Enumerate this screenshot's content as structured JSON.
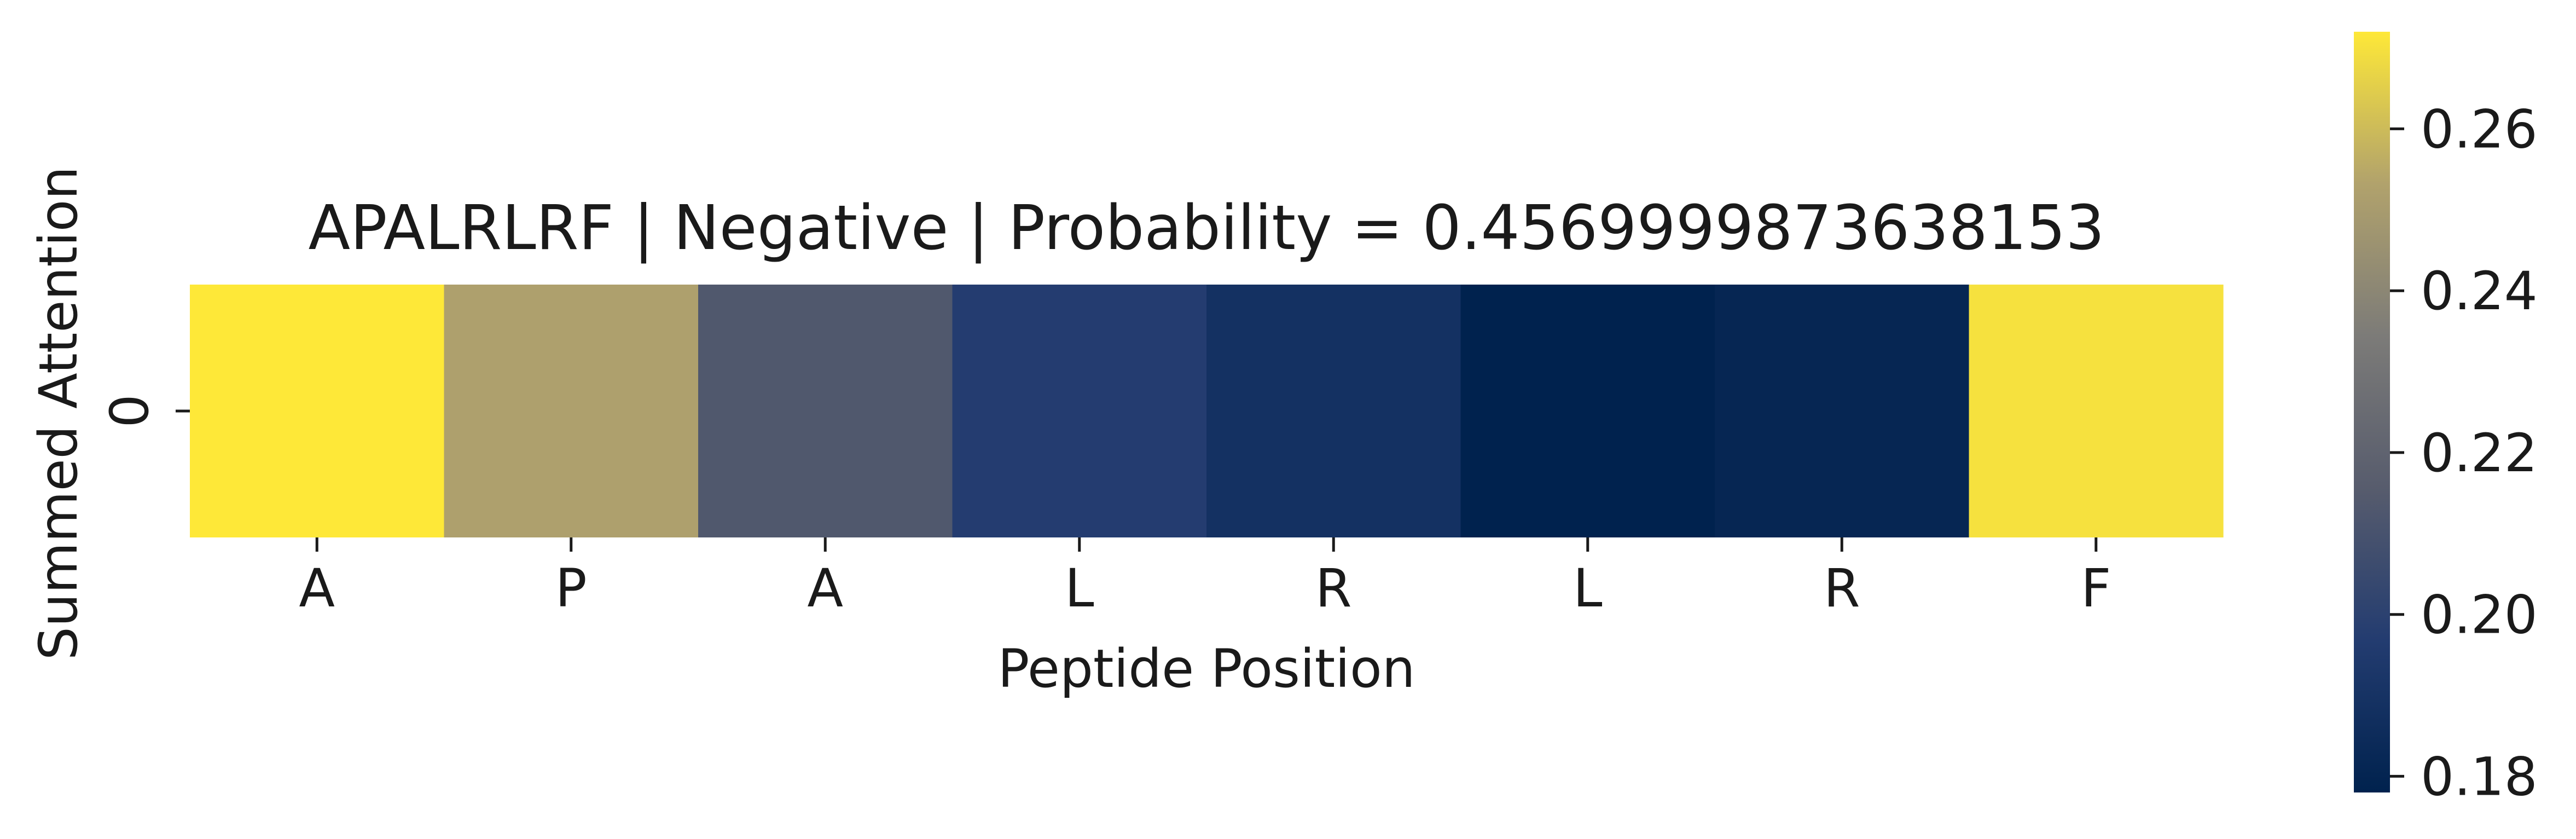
{
  "chart_data": {
    "type": "heatmap",
    "title": "APALRLRF | Negative | Probability = 0.4569999873638153",
    "xlabel": "Peptide Position",
    "ylabel": "Summed Attention",
    "x_categories": [
      "A",
      "P",
      "A",
      "L",
      "R",
      "L",
      "R",
      "F"
    ],
    "y_categories": [
      "0"
    ],
    "values": [
      [
        0.272,
        0.252,
        0.213,
        0.197,
        0.189,
        0.178,
        0.181,
        0.27
      ]
    ],
    "colormap": "cividis",
    "colorbar": {
      "range": [
        0.178,
        0.272
      ],
      "ticks": [
        0.18,
        0.2,
        0.22,
        0.24,
        0.26
      ],
      "tick_labels": [
        "0.18",
        "0.20",
        "0.22",
        "0.24",
        "0.26"
      ]
    }
  }
}
